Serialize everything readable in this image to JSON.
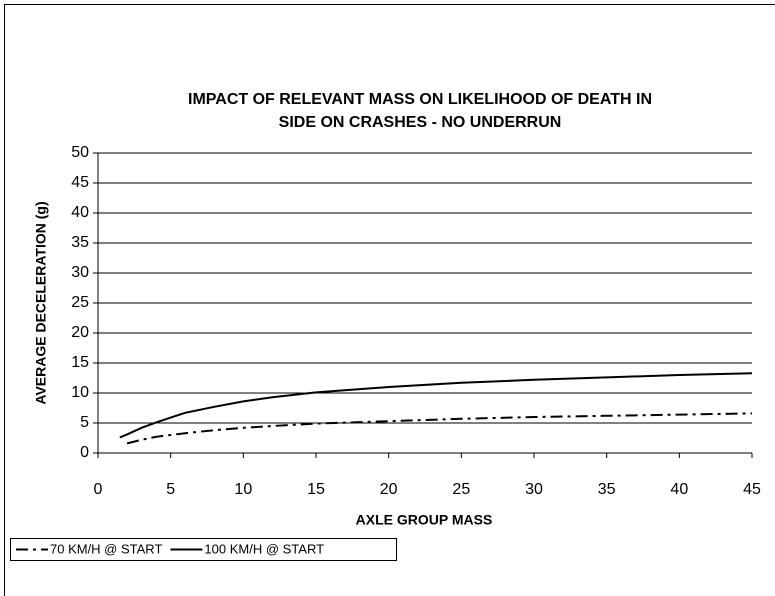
{
  "chart_data": {
    "type": "line",
    "title": [
      "IMPACT OF RELEVANT MASS ON LIKELIHOOD OF DEATH IN",
      "SIDE ON CRASHES - NO UNDERRUN"
    ],
    "x_label": "AXLE GROUP MASS",
    "y_label": "AVERAGE DECELERATION (g)",
    "xlim": [
      0,
      45
    ],
    "xticks": [
      0,
      5,
      10,
      15,
      20,
      25,
      30,
      35,
      40,
      45
    ],
    "ylim": [
      0,
      50
    ],
    "yticks": [
      0,
      5,
      10,
      15,
      20,
      25,
      30,
      35,
      40,
      45,
      50
    ],
    "grid": true,
    "legend": "bottom-left",
    "series": [
      {
        "name": "70 KM/H @ START",
        "color": "#000000",
        "dash": "dashdot",
        "x": [
          2,
          3,
          4,
          5,
          6,
          8,
          10,
          12,
          15,
          20,
          25,
          30,
          35,
          40,
          45
        ],
        "values": [
          1.6,
          2.2,
          2.7,
          3.0,
          3.3,
          3.8,
          4.2,
          4.5,
          4.9,
          5.3,
          5.7,
          6.0,
          6.2,
          6.4,
          6.6
        ]
      },
      {
        "name": "100 KM/H @ START",
        "color": "#000000",
        "dash": "solid",
        "x": [
          1.5,
          2,
          3,
          4,
          5,
          6,
          8,
          10,
          12,
          15,
          20,
          25,
          30,
          35,
          40,
          45
        ],
        "values": [
          2.6,
          3.1,
          4.2,
          5.1,
          5.9,
          6.7,
          7.7,
          8.6,
          9.3,
          10.1,
          11.0,
          11.7,
          12.2,
          12.6,
          13.0,
          13.3
        ]
      }
    ]
  }
}
